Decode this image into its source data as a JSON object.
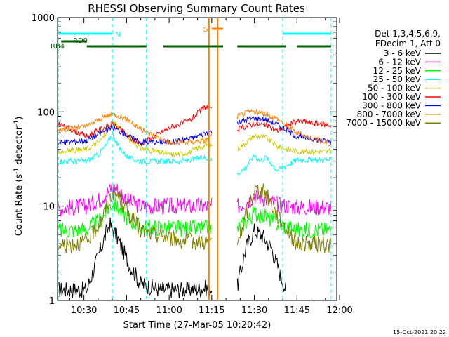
{
  "chart_data": {
    "type": "line",
    "title": "RHESSI Observing Summary Count Rates",
    "xlabel": "Start Time (27-Mar-05 10:20:42)",
    "ylabel": "Count Rate (s⁻¹ detector⁻¹)",
    "ylabel_parts": {
      "a": "Count Rate (s",
      "b": "-1",
      "c": " detector",
      "d": "-1",
      "e": ")"
    },
    "footer": "15-Oct-2021 20:22",
    "y_scale": "log",
    "ylim": [
      1,
      1000
    ],
    "xlim": [
      "10:20:42",
      "11:59:00"
    ],
    "x_ticks": [
      "10:30",
      "10:45",
      "11:00",
      "11:15",
      "11:30",
      "11:45",
      "12:00"
    ],
    "y_ticks": [
      "1",
      "10",
      "100",
      "1000"
    ],
    "grid": false,
    "legend": {
      "placement": "right",
      "header": [
        "Det 1,3,4,5,6,9,",
        "FDecim 1, Att 0"
      ]
    },
    "series": [
      {
        "name": "3 - 6 keV",
        "color": "#000000",
        "points": [
          [
            "10:21",
            1.3
          ],
          [
            "10:31",
            1.3
          ],
          [
            "10:36",
            3.6
          ],
          [
            "10:39",
            6.5
          ],
          [
            "10:42",
            4.5
          ],
          [
            "10:46",
            2.4
          ],
          [
            "10:50",
            1.5
          ],
          [
            "10:57",
            1.3
          ],
          [
            "11:05",
            1.3
          ],
          [
            "11:13",
            1.35
          ],
          [
            "11:24",
            1.4
          ],
          [
            "11:27",
            3.6
          ],
          [
            "11:30",
            5.5
          ],
          [
            "11:33",
            4.8
          ],
          [
            "11:36",
            3.6
          ],
          [
            "11:41",
            1.3
          ]
        ]
      },
      {
        "name": "6 - 12 keV",
        "color": "#ff00ff",
        "points": [
          [
            "10:21",
            9.5
          ],
          [
            "10:31",
            10
          ],
          [
            "10:36",
            12
          ],
          [
            "10:40",
            16
          ],
          [
            "10:42",
            15
          ],
          [
            "10:46",
            11
          ],
          [
            "10:50",
            10
          ],
          [
            "11:05",
            10
          ],
          [
            "11:13",
            10
          ],
          [
            "11:24",
            10
          ],
          [
            "11:28",
            11.5
          ],
          [
            "11:30",
            13
          ],
          [
            "11:34",
            12
          ],
          [
            "11:38",
            10.5
          ],
          [
            "11:45",
            9.8
          ],
          [
            "11:57",
            9.8
          ]
        ]
      },
      {
        "name": "12 - 25 keV",
        "color": "#00ff00",
        "points": [
          [
            "10:21",
            5.5
          ],
          [
            "10:31",
            5.7
          ],
          [
            "10:36",
            7.2
          ],
          [
            "10:40",
            11
          ],
          [
            "10:42",
            9.5
          ],
          [
            "10:46",
            7.2
          ],
          [
            "10:50",
            6
          ],
          [
            "11:05",
            5.8
          ],
          [
            "11:13",
            5.8
          ],
          [
            "11:24",
            5.8
          ],
          [
            "11:28",
            7.2
          ],
          [
            "11:30",
            8.5
          ],
          [
            "11:34",
            7.8
          ],
          [
            "11:38",
            6.5
          ],
          [
            "11:45",
            5.6
          ],
          [
            "11:57",
            5.6
          ]
        ]
      },
      {
        "name": "25 - 50 keV",
        "color": "#00ffff",
        "points": [
          [
            "10:21",
            30
          ],
          [
            "10:31",
            30
          ],
          [
            "10:35",
            35
          ],
          [
            "10:38",
            45
          ],
          [
            "10:40",
            60
          ],
          [
            "10:42",
            43
          ],
          [
            "10:46",
            32
          ],
          [
            "10:50",
            30
          ],
          [
            "11:05",
            30
          ],
          [
            "11:13",
            33
          ],
          [
            "11:24",
            22
          ],
          [
            "11:27",
            26
          ],
          [
            "11:30",
            35
          ],
          [
            "11:32",
            30
          ],
          [
            "11:34",
            33
          ],
          [
            "11:38",
            24
          ],
          [
            "11:45",
            31
          ],
          [
            "11:57",
            31
          ]
        ]
      },
      {
        "name": "50 - 100 keV",
        "color": "#cccc00",
        "points": [
          [
            "10:21",
            38
          ],
          [
            "10:31",
            40
          ],
          [
            "10:36",
            50
          ],
          [
            "10:40",
            76
          ],
          [
            "10:42",
            70
          ],
          [
            "10:46",
            52
          ],
          [
            "10:50",
            41
          ],
          [
            "11:01",
            35
          ],
          [
            "11:07",
            37
          ],
          [
            "11:13",
            45
          ],
          [
            "11:24",
            40
          ],
          [
            "11:28",
            50
          ],
          [
            "11:30",
            56
          ],
          [
            "11:34",
            54
          ],
          [
            "11:38",
            43
          ],
          [
            "11:45",
            38
          ],
          [
            "11:57",
            38
          ]
        ]
      },
      {
        "name": "100 - 300 keV",
        "color": "#ff0000",
        "points": [
          [
            "10:21",
            75
          ],
          [
            "10:31",
            55
          ],
          [
            "10:36",
            66
          ],
          [
            "10:40",
            74
          ],
          [
            "10:42",
            68
          ],
          [
            "10:46",
            53
          ],
          [
            "10:50",
            46
          ],
          [
            "11:01",
            70
          ],
          [
            "11:07",
            80
          ],
          [
            "11:13",
            115
          ],
          [
            "11:24",
            65
          ],
          [
            "11:28",
            72
          ],
          [
            "11:30",
            75
          ],
          [
            "11:34",
            72
          ],
          [
            "11:38",
            63
          ],
          [
            "11:45",
            80
          ],
          [
            "11:57",
            72
          ]
        ]
      },
      {
        "name": "300 - 800 keV",
        "color": "#0000ff",
        "points": [
          [
            "10:21",
            47
          ],
          [
            "10:31",
            50
          ],
          [
            "10:36",
            60
          ],
          [
            "10:40",
            68
          ],
          [
            "10:42",
            64
          ],
          [
            "10:46",
            55
          ],
          [
            "10:50",
            48
          ],
          [
            "11:01",
            48
          ],
          [
            "11:07",
            52
          ],
          [
            "11:13",
            60
          ],
          [
            "11:24",
            75
          ],
          [
            "11:28",
            85
          ],
          [
            "11:30",
            86
          ],
          [
            "11:34",
            83
          ],
          [
            "11:38",
            74
          ],
          [
            "11:45",
            55
          ],
          [
            "11:57",
            48
          ]
        ]
      },
      {
        "name": "800 - 7000 keV",
        "color": "#ff8000",
        "points": [
          [
            "10:21",
            65
          ],
          [
            "10:31",
            70
          ],
          [
            "10:36",
            85
          ],
          [
            "10:40",
            95
          ],
          [
            "10:42",
            92
          ],
          [
            "10:46",
            80
          ],
          [
            "10:50",
            65
          ],
          [
            "11:01",
            46
          ],
          [
            "11:07",
            48
          ],
          [
            "11:13",
            50
          ],
          [
            "11:24",
            90
          ],
          [
            "11:28",
            100
          ],
          [
            "11:30",
            100
          ],
          [
            "11:34",
            95
          ],
          [
            "11:38",
            85
          ],
          [
            "11:45",
            60
          ],
          [
            "11:57",
            45
          ]
        ]
      },
      {
        "name": "7000 - 15000 keV",
        "color": "#808000",
        "points": [
          [
            "10:21",
            3.8
          ],
          [
            "10:31",
            4.2
          ],
          [
            "10:36",
            7
          ],
          [
            "10:40",
            14
          ],
          [
            "10:42",
            13
          ],
          [
            "10:46",
            8
          ],
          [
            "10:50",
            5.4
          ],
          [
            "11:05",
            4.3
          ],
          [
            "11:13",
            4.2
          ],
          [
            "11:24",
            4
          ],
          [
            "11:27",
            8
          ],
          [
            "11:30",
            15
          ],
          [
            "11:34",
            14
          ],
          [
            "11:38",
            8
          ],
          [
            "11:45",
            4
          ],
          [
            "11:57",
            3.9
          ]
        ]
      }
    ],
    "gap_spans": [
      [
        "11:15",
        "11:24"
      ]
    ],
    "flag_labels": {
      "saa_marker": "S",
      "night": "N",
      "rd0": "RD0",
      "rb4": "RB4"
    },
    "flag_colors": {
      "night": "#00ffff",
      "saa": "#ff8000",
      "decimation": "#006000"
    },
    "night_markers": [
      "10:21",
      "10:40",
      "10:52",
      "11:40",
      "11:57"
    ],
    "saa_markers": [
      "11:14",
      "11:17"
    ],
    "night_bars": [
      [
        "10:21",
        "10:40"
      ],
      [
        "11:40",
        "11:57"
      ]
    ],
    "saa_bar": [
      "11:15",
      "11:19"
    ],
    "rd0_bar": [
      "10:22",
      "10:31"
    ],
    "decim_bars": [
      [
        "10:31",
        "10:52"
      ],
      [
        "10:58",
        "11:19"
      ],
      [
        "11:24",
        "11:41"
      ],
      [
        "11:45",
        "11:57"
      ]
    ]
  }
}
